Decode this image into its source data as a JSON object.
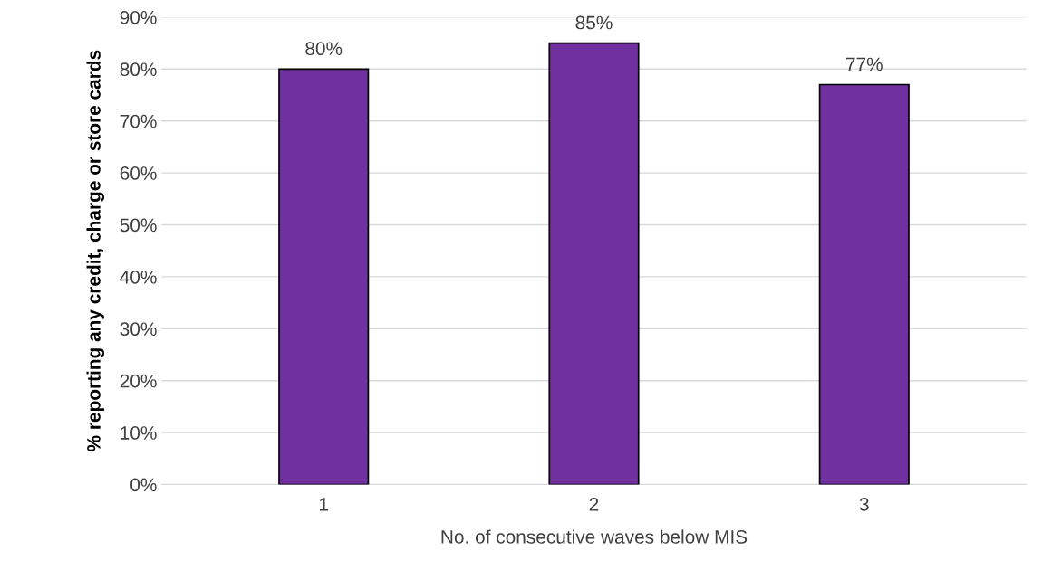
{
  "chart_data": {
    "type": "bar",
    "xlabel": "No. of consecutive waves below MIS",
    "ylabel": "% reporting any credit, charge or store cards",
    "categories": [
      "1",
      "2",
      "3"
    ],
    "values": [
      80,
      85,
      77
    ],
    "value_labels": [
      "80%",
      "85%",
      "77%"
    ],
    "color": "#7030a0",
    "ylim": [
      0,
      90
    ],
    "yticks": [
      {
        "value": 0,
        "label": "0%"
      },
      {
        "value": 10,
        "label": "10%"
      },
      {
        "value": 20,
        "label": "20%"
      },
      {
        "value": 30,
        "label": "30%"
      },
      {
        "value": 40,
        "label": "40%"
      },
      {
        "value": 50,
        "label": "50%"
      },
      {
        "value": 60,
        "label": "60%"
      },
      {
        "value": 70,
        "label": "70%"
      },
      {
        "value": 80,
        "label": "80%"
      },
      {
        "value": 90,
        "label": "90%"
      }
    ],
    "grid": "y",
    "legend": false
  }
}
